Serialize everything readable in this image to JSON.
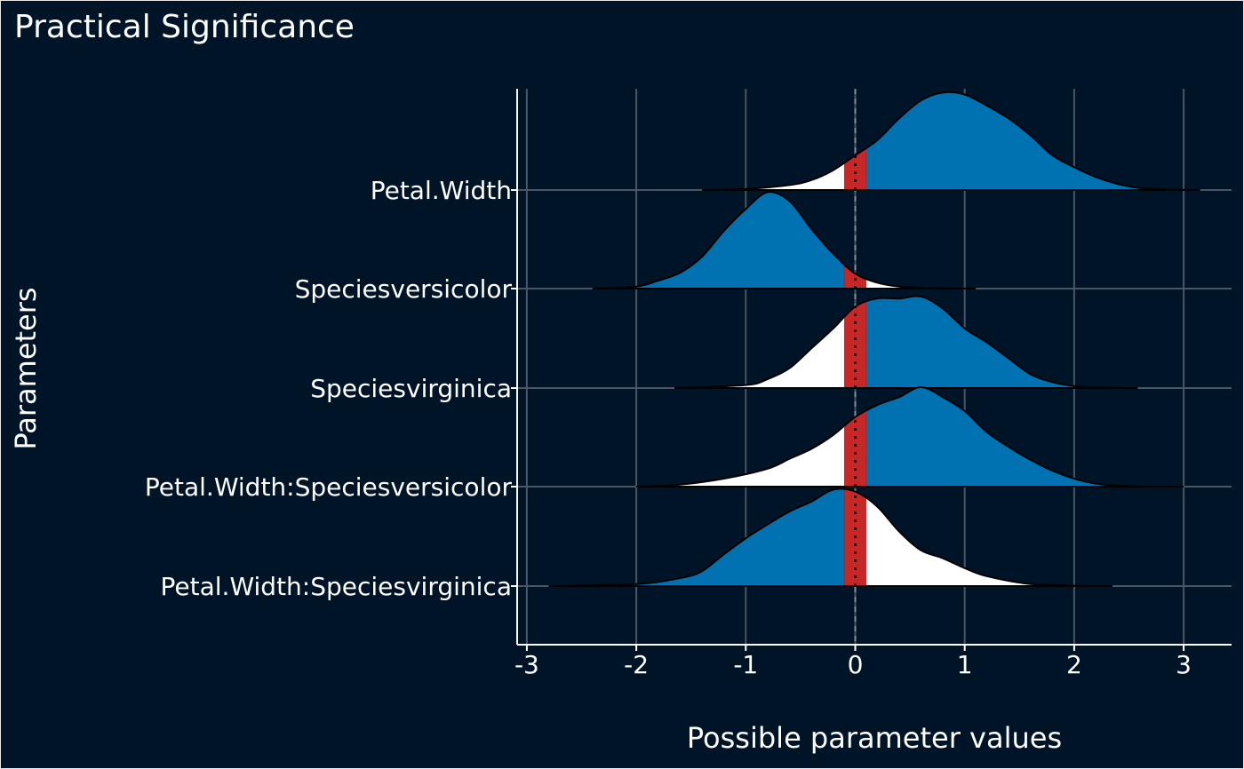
{
  "page": {
    "title": "Practical Significance",
    "background": "#001428",
    "border_color": "#e6e6e6"
  },
  "chart_data": {
    "type": "density_ridges",
    "title": "Practical Significance",
    "xlabel": "Possible parameter values",
    "ylabel": "Parameters",
    "xlim": [
      -3,
      3.45
    ],
    "xticks": [
      -3,
      -2,
      -1,
      0,
      1,
      2,
      3
    ],
    "grid": true,
    "rope": [
      -0.1,
      0.1
    ],
    "colors": {
      "rope": "#c62828",
      "significant": "#0072b2",
      "not_significant": "#ffffff",
      "grid": "#4b5563",
      "outline": "#000000"
    },
    "parameters": [
      {
        "name": "Petal.Width",
        "x": [
          -1.4,
          -1.0,
          -0.6,
          -0.4,
          -0.2,
          0,
          0.2,
          0.4,
          0.6,
          0.8,
          1.0,
          1.2,
          1.4,
          1.6,
          1.8,
          2.0,
          2.2,
          2.4,
          2.6,
          2.8,
          3.0,
          3.15
        ],
        "density": [
          0,
          0.01,
          0.05,
          0.1,
          0.2,
          0.35,
          0.5,
          0.72,
          0.9,
          0.98,
          0.96,
          0.85,
          0.72,
          0.55,
          0.35,
          0.23,
          0.13,
          0.06,
          0.02,
          0.005,
          0.002,
          0
        ],
        "sign": "positive"
      },
      {
        "name": "Speciesversicolor",
        "x": [
          -2.4,
          -2.0,
          -1.8,
          -1.6,
          -1.4,
          -1.2,
          -1.0,
          -0.8,
          -0.6,
          -0.4,
          -0.2,
          0,
          0.2,
          0.4,
          0.6,
          0.8,
          1.1
        ],
        "density": [
          0,
          0.02,
          0.08,
          0.16,
          0.32,
          0.58,
          0.8,
          0.97,
          0.88,
          0.6,
          0.35,
          0.15,
          0.06,
          0.02,
          0.008,
          0.003,
          0
        ],
        "sign": "negative"
      },
      {
        "name": "Speciesvirginica",
        "x": [
          -1.65,
          -1.0,
          -0.8,
          -0.6,
          -0.4,
          -0.2,
          0,
          0.2,
          0.4,
          0.6,
          0.8,
          1.0,
          1.2,
          1.4,
          1.6,
          1.8,
          2.0,
          2.2,
          2.58
        ],
        "density": [
          0,
          0.03,
          0.09,
          0.2,
          0.4,
          0.6,
          0.82,
          0.9,
          0.9,
          0.92,
          0.8,
          0.6,
          0.46,
          0.3,
          0.14,
          0.06,
          0.02,
          0.006,
          0
        ],
        "sign": "positive"
      },
      {
        "name": "Petal.Width:Speciesversicolor",
        "x": [
          -2.0,
          -1.6,
          -1.2,
          -0.8,
          -0.6,
          -0.4,
          -0.2,
          0,
          0.2,
          0.4,
          0.6,
          0.8,
          1.0,
          1.2,
          1.4,
          1.6,
          1.8,
          2.0,
          2.2,
          2.5,
          3.0
        ],
        "density": [
          0,
          0.02,
          0.08,
          0.18,
          0.28,
          0.38,
          0.52,
          0.7,
          0.82,
          0.9,
          1.0,
          0.9,
          0.76,
          0.55,
          0.4,
          0.27,
          0.16,
          0.08,
          0.03,
          0.005,
          0
        ],
        "sign": "positive"
      },
      {
        "name": "Petal.Width:Speciesvirginica",
        "x": [
          -2.8,
          -2.0,
          -1.6,
          -1.4,
          -1.2,
          -1.0,
          -0.8,
          -0.6,
          -0.4,
          -0.2,
          0,
          0.2,
          0.4,
          0.6,
          0.8,
          1.0,
          1.2,
          1.6,
          2.0,
          2.35
        ],
        "density": [
          0,
          0.02,
          0.08,
          0.15,
          0.32,
          0.48,
          0.62,
          0.75,
          0.85,
          0.97,
          0.95,
          0.8,
          0.55,
          0.36,
          0.28,
          0.18,
          0.1,
          0.02,
          0.005,
          0
        ],
        "sign": "negative"
      }
    ]
  }
}
